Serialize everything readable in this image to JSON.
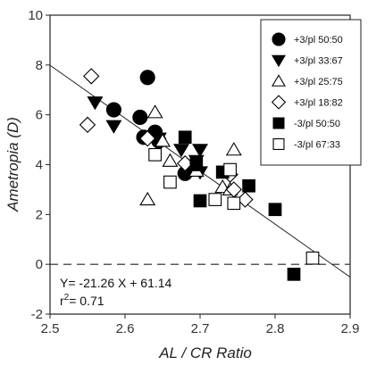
{
  "chart_data": {
    "type": "scatter",
    "xlabel": "AL / CR Ratio",
    "ylabel": "Ametropia (D)",
    "xlim": [
      2.5,
      2.9
    ],
    "ylim": [
      -2,
      10
    ],
    "x_ticks": [
      2.5,
      2.6,
      2.7,
      2.8,
      2.9
    ],
    "x_tick_labels": [
      "2.5",
      "2.6",
      "2.7",
      "2.8",
      "2.9"
    ],
    "y_ticks": [
      -2,
      0,
      2,
      4,
      6,
      8,
      10
    ],
    "y_tick_labels": [
      "-2",
      "0",
      "2",
      "4",
      "6",
      "8",
      "10"
    ],
    "grid": false,
    "legend_position": "top-right",
    "zero_line": {
      "y": 0,
      "style": "dashed"
    },
    "regression": {
      "slope": -21.26,
      "intercept": 61.14,
      "x_range": [
        2.5,
        2.9
      ]
    },
    "annotation": {
      "equation": "Y= -21.26 X + 61.14",
      "r2_prefix": "r",
      "r2_sup": "2",
      "r2_value": "= 0.71"
    },
    "series": [
      {
        "name": "+3/pl 50:50",
        "marker": "circle-filled",
        "points": [
          [
            2.585,
            6.2
          ],
          [
            2.62,
            5.9
          ],
          [
            2.63,
            7.5
          ],
          [
            2.625,
            5.1
          ],
          [
            2.64,
            5.3
          ],
          [
            2.645,
            4.95
          ],
          [
            2.68,
            3.65
          ]
        ]
      },
      {
        "name": "+3/pl 33:67",
        "marker": "triangle-down-filled",
        "points": [
          [
            2.56,
            6.5
          ],
          [
            2.585,
            5.55
          ],
          [
            2.645,
            5.05
          ],
          [
            2.675,
            4.6
          ],
          [
            2.695,
            4.15
          ],
          [
            2.7,
            4.6
          ],
          [
            2.7,
            3.7
          ]
        ]
      },
      {
        "name": "+3/pl 25:75",
        "marker": "triangle-up-open",
        "points": [
          [
            2.64,
            6.1
          ],
          [
            2.65,
            4.95
          ],
          [
            2.66,
            4.15
          ],
          [
            2.695,
            3.75
          ],
          [
            2.73,
            3.1
          ],
          [
            2.74,
            3.0
          ],
          [
            2.745,
            4.6
          ],
          [
            2.63,
            2.6
          ]
        ]
      },
      {
        "name": "+3/pl 18:82",
        "marker": "diamond-open",
        "points": [
          [
            2.555,
            7.55
          ],
          [
            2.55,
            5.6
          ],
          [
            2.63,
            5.05
          ],
          [
            2.68,
            4.05
          ],
          [
            2.74,
            3.6
          ],
          [
            2.745,
            3.0
          ],
          [
            2.76,
            2.6
          ]
        ]
      },
      {
        "name": "-3/pl 50:50",
        "marker": "square-filled",
        "points": [
          [
            2.68,
            5.1
          ],
          [
            2.695,
            4.0
          ],
          [
            2.7,
            2.55
          ],
          [
            2.73,
            3.7
          ],
          [
            2.765,
            3.15
          ],
          [
            2.8,
            2.2
          ],
          [
            2.825,
            -0.4
          ]
        ]
      },
      {
        "name": "-3/pl 67:33",
        "marker": "square-open",
        "points": [
          [
            2.64,
            4.4
          ],
          [
            2.66,
            3.3
          ],
          [
            2.72,
            2.6
          ],
          [
            2.74,
            3.8
          ],
          [
            2.745,
            2.45
          ],
          [
            2.85,
            0.25
          ]
        ]
      }
    ]
  }
}
